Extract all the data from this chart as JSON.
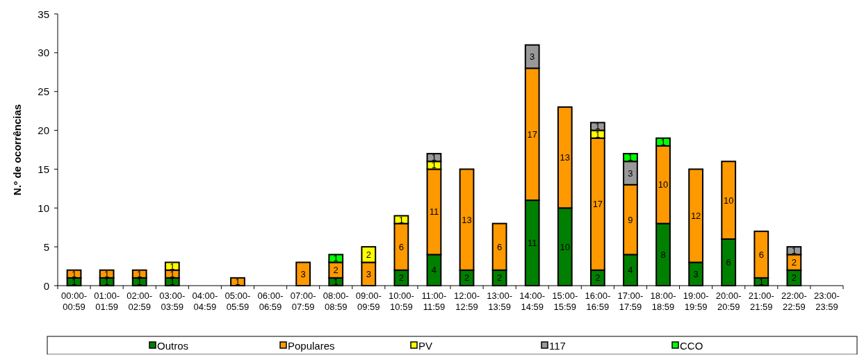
{
  "chart_data": {
    "type": "bar",
    "stacked": true,
    "ylabel": "N.º de ocorrências",
    "categories": [
      "00:00-00:59",
      "01:00-01:59",
      "02:00-02:59",
      "03:00-03:59",
      "04:00-04:59",
      "05:00-05:59",
      "06:00-06:59",
      "07:00-07:59",
      "08:00-08:59",
      "09:00-09:59",
      "10:00-10:59",
      "11:00-11:59",
      "12:00-12:59",
      "13:00-13:59",
      "14:00-14:59",
      "15:00-15:59",
      "16:00-16:59",
      "17:00-17:59",
      "18:00-18:59",
      "19:00-19:59",
      "20:00-20:59",
      "21:00-21:59",
      "22:00-22:59",
      "23:00-23:59"
    ],
    "series": [
      {
        "name": "Outros",
        "color": "#008000",
        "values": [
          1,
          1,
          1,
          1,
          null,
          null,
          null,
          null,
          1,
          null,
          2,
          4,
          2,
          2,
          11,
          10,
          2,
          4,
          8,
          3,
          6,
          1,
          2,
          null
        ]
      },
      {
        "name": "Populares",
        "color": "#ff9900",
        "values": [
          1,
          1,
          1,
          1,
          null,
          1,
          null,
          3,
          2,
          3,
          6,
          11,
          13,
          6,
          17,
          13,
          17,
          9,
          10,
          12,
          10,
          6,
          2,
          null
        ]
      },
      {
        "name": "PV",
        "color": "#ffff00",
        "values": [
          null,
          null,
          null,
          1,
          null,
          null,
          null,
          null,
          null,
          2,
          1,
          1,
          null,
          null,
          null,
          null,
          1,
          null,
          null,
          null,
          null,
          null,
          null,
          null
        ]
      },
      {
        "name": "117",
        "color": "#999999",
        "values": [
          null,
          null,
          null,
          null,
          null,
          null,
          null,
          null,
          null,
          null,
          null,
          1,
          null,
          null,
          3,
          null,
          1,
          3,
          null,
          null,
          null,
          null,
          1,
          null
        ]
      },
      {
        "name": "CCO",
        "color": "#00ff00",
        "values": [
          null,
          null,
          null,
          null,
          null,
          null,
          null,
          null,
          1,
          null,
          null,
          null,
          null,
          null,
          null,
          null,
          null,
          1,
          1,
          null,
          null,
          null,
          null,
          null
        ]
      }
    ],
    "ylim": [
      0,
      35
    ],
    "yticks": [
      0,
      5,
      10,
      15,
      20,
      25,
      30,
      35
    ],
    "legend": "bottom",
    "data_labels": true
  }
}
